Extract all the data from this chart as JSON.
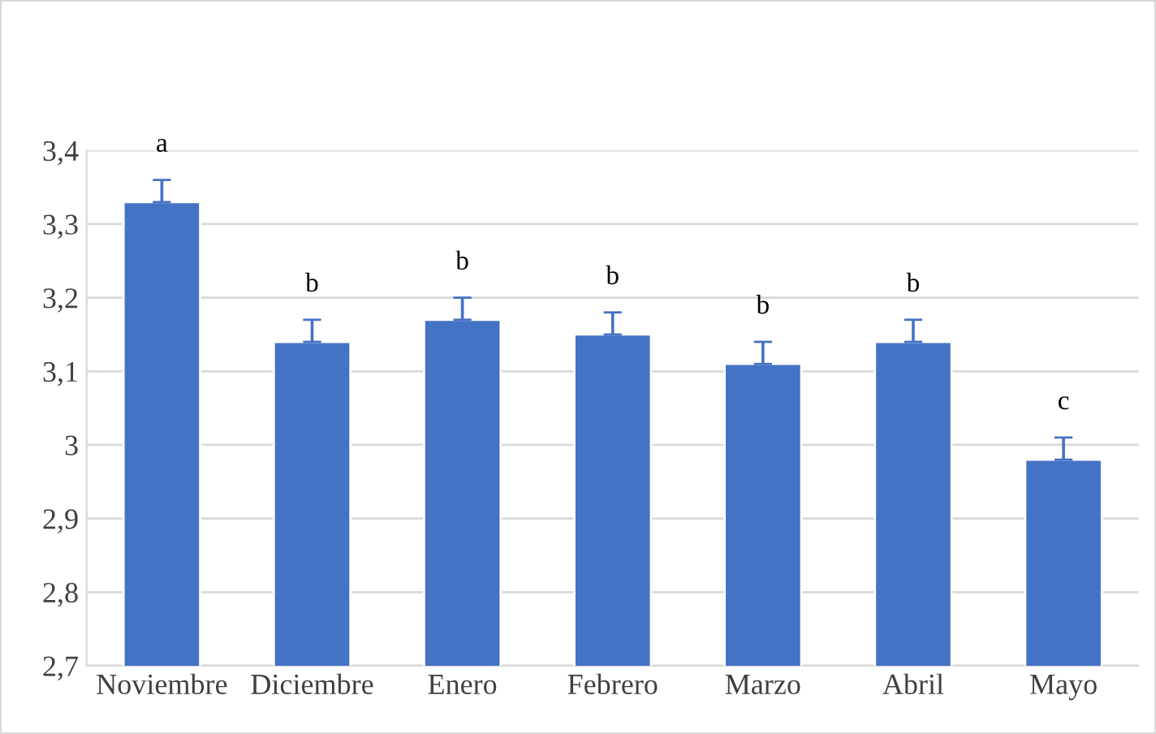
{
  "chart_data": {
    "type": "bar",
    "categories": [
      "Noviembre",
      "Diciembre",
      "Enero",
      "Febrero",
      "Marzo",
      "Abril",
      "Mayo"
    ],
    "values": [
      3.33,
      3.14,
      3.17,
      3.15,
      3.11,
      3.14,
      2.98
    ],
    "errors": [
      [
        3.33,
        3.36
      ],
      [
        3.14,
        3.17
      ],
      [
        3.17,
        3.2
      ],
      [
        3.15,
        3.18
      ],
      [
        3.11,
        3.14
      ],
      [
        3.14,
        3.17
      ],
      [
        2.98,
        3.01
      ]
    ],
    "color": "#4472c4",
    "ylim": [
      2.7,
      3.4
    ],
    "yticks": [
      {
        "value": 2.7,
        "label": "2,7"
      },
      {
        "value": 2.8,
        "label": "2,8"
      },
      {
        "value": 2.9,
        "label": "2,9"
      },
      {
        "value": 3,
        "label": "3"
      },
      {
        "value": 3.1,
        "label": "3,1"
      },
      {
        "value": 3.2,
        "label": "3,2"
      },
      {
        "value": 3.3,
        "label": "3,3"
      },
      {
        "value": 3.4,
        "label": "3,4"
      }
    ],
    "grid": "y",
    "annotations": [
      "a",
      "b",
      "b",
      "b",
      "b",
      "b",
      "c"
    ]
  }
}
